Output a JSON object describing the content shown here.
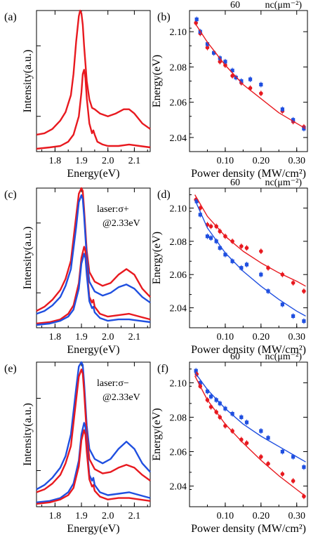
{
  "colors": {
    "red": "#e8191f",
    "blue": "#1f4fe0",
    "axis": "#000000"
  },
  "top_axis_labels": {
    "value": "60",
    "unit": "nc(μm⁻²)"
  },
  "chart_data": [
    {
      "panel": "(a)",
      "type": "line",
      "xlabel": "Energy(eV)",
      "ylabel": "Intensity(a.u.)",
      "xlim": [
        1.73,
        2.16
      ],
      "xticks": [
        "1.8",
        "1.9",
        "2.0",
        "2.1"
      ],
      "ylim": [
        0,
        1
      ],
      "series": [
        {
          "color": "red",
          "x": [
            1.73,
            1.76,
            1.79,
            1.82,
            1.84,
            1.86,
            1.87,
            1.88,
            1.89,
            1.895,
            1.9,
            1.905,
            1.91,
            1.92,
            1.93,
            1.94,
            1.95,
            1.97,
            2.0,
            2.03,
            2.06,
            2.08,
            2.1,
            2.13,
            2.16
          ],
          "y": [
            0.12,
            0.13,
            0.16,
            0.22,
            0.28,
            0.4,
            0.55,
            0.78,
            0.96,
            1.0,
            0.98,
            0.9,
            0.75,
            0.5,
            0.37,
            0.31,
            0.3,
            0.27,
            0.25,
            0.27,
            0.3,
            0.3,
            0.27,
            0.2,
            0.16
          ]
        },
        {
          "color": "red",
          "x": [
            1.73,
            1.78,
            1.82,
            1.85,
            1.87,
            1.89,
            1.9,
            1.905,
            1.91,
            1.915,
            1.92,
            1.93,
            1.94,
            1.945,
            1.95,
            1.96,
            1.98,
            2.0,
            2.04,
            2.08,
            2.12,
            2.16
          ],
          "y": [
            0.02,
            0.03,
            0.04,
            0.07,
            0.12,
            0.25,
            0.42,
            0.55,
            0.58,
            0.52,
            0.38,
            0.2,
            0.13,
            0.15,
            0.12,
            0.07,
            0.05,
            0.04,
            0.04,
            0.05,
            0.04,
            0.03
          ]
        }
      ]
    },
    {
      "panel": "(b)",
      "type": "scatter",
      "xlabel": "Power density (MW/cm²)",
      "ylabel": "Energy(eV)",
      "xlim": [
        0.0,
        0.33
      ],
      "xticks": [
        "0.10",
        "0.20",
        "0.30"
      ],
      "ylim": [
        2.032,
        2.112
      ],
      "yticks": [
        "2.04",
        "2.06",
        "2.08",
        "2.10"
      ],
      "series": [
        {
          "color": "red",
          "x": [
            0.018,
            0.03,
            0.05,
            0.068,
            0.085,
            0.1,
            0.12,
            0.145,
            0.17,
            0.2,
            0.26,
            0.29,
            0.32
          ],
          "y": [
            2.105,
            2.099,
            2.091,
            2.088,
            2.083,
            2.081,
            2.075,
            2.071,
            2.068,
            2.065,
            2.055,
            2.049,
            2.046
          ]
        },
        {
          "color": "blue",
          "x": [
            0.02,
            0.03,
            0.05,
            0.068,
            0.085,
            0.1,
            0.12,
            0.13,
            0.145,
            0.17,
            0.2,
            0.26,
            0.29,
            0.32
          ],
          "y": [
            2.107,
            2.1,
            2.093,
            2.088,
            2.085,
            2.083,
            2.078,
            2.074,
            2.072,
            2.073,
            2.07,
            2.056,
            2.05,
            2.045
          ]
        },
        {
          "color": "red",
          "fit": true,
          "x": [
            0.015,
            0.05,
            0.1,
            0.15,
            0.2,
            0.25,
            0.3,
            0.325
          ],
          "y": [
            2.105,
            2.094,
            2.081,
            2.07,
            2.062,
            2.054,
            2.048,
            2.045
          ]
        }
      ]
    },
    {
      "panel": "(c)",
      "type": "line",
      "xlabel": "Energy(eV)",
      "ylabel": "Intensity(a.u.)",
      "annotation": [
        "laser:σ+",
        "@2.33eV"
      ],
      "xlim": [
        1.73,
        2.16
      ],
      "xticks": [
        "1.8",
        "1.9",
        "2.0",
        "2.1"
      ],
      "ylim": [
        0,
        1
      ],
      "series": [
        {
          "color": "red",
          "x": [
            1.73,
            1.76,
            1.79,
            1.82,
            1.84,
            1.86,
            1.88,
            1.89,
            1.9,
            1.905,
            1.91,
            1.92,
            1.93,
            1.95,
            1.98,
            2.01,
            2.04,
            2.07,
            2.1,
            2.13,
            2.16
          ],
          "y": [
            0.12,
            0.15,
            0.2,
            0.27,
            0.35,
            0.48,
            0.8,
            0.96,
            1.0,
            0.98,
            0.85,
            0.55,
            0.4,
            0.33,
            0.3,
            0.32,
            0.38,
            0.42,
            0.38,
            0.28,
            0.22
          ]
        },
        {
          "color": "blue",
          "x": [
            1.73,
            1.76,
            1.79,
            1.82,
            1.84,
            1.86,
            1.88,
            1.89,
            1.9,
            1.905,
            1.91,
            1.92,
            1.93,
            1.95,
            1.98,
            2.01,
            2.04,
            2.07,
            2.1,
            2.13,
            2.16
          ],
          "y": [
            0.1,
            0.12,
            0.16,
            0.22,
            0.3,
            0.42,
            0.72,
            0.9,
            0.95,
            0.92,
            0.8,
            0.5,
            0.33,
            0.26,
            0.23,
            0.25,
            0.29,
            0.31,
            0.28,
            0.22,
            0.18
          ]
        },
        {
          "color": "red",
          "x": [
            1.73,
            1.78,
            1.82,
            1.85,
            1.87,
            1.89,
            1.9,
            1.91,
            1.915,
            1.92,
            1.93,
            1.94,
            1.945,
            1.95,
            1.97,
            2.0,
            2.04,
            2.08,
            2.12,
            2.16
          ],
          "y": [
            0.03,
            0.04,
            0.06,
            0.1,
            0.16,
            0.32,
            0.5,
            0.58,
            0.55,
            0.42,
            0.22,
            0.18,
            0.2,
            0.15,
            0.1,
            0.08,
            0.09,
            0.1,
            0.08,
            0.06
          ]
        },
        {
          "color": "blue",
          "x": [
            1.73,
            1.78,
            1.82,
            1.85,
            1.87,
            1.89,
            1.9,
            1.91,
            1.915,
            1.92,
            1.93,
            1.94,
            1.945,
            1.95,
            1.97,
            2.0,
            2.04,
            2.08,
            2.12,
            2.16
          ],
          "y": [
            0.02,
            0.03,
            0.05,
            0.08,
            0.13,
            0.28,
            0.46,
            0.53,
            0.5,
            0.38,
            0.19,
            0.14,
            0.15,
            0.11,
            0.07,
            0.05,
            0.06,
            0.06,
            0.05,
            0.04
          ]
        }
      ]
    },
    {
      "panel": "(d)",
      "type": "scatter",
      "xlabel": "Power density (MW/cm²)",
      "ylabel": "Energy(eV)",
      "xlim": [
        0.0,
        0.33
      ],
      "xticks": [
        "0.10",
        "0.20",
        "0.30"
      ],
      "ylim": [
        2.028,
        2.112
      ],
      "yticks": [
        "2.04",
        "2.06",
        "2.08",
        "2.10"
      ],
      "series": [
        {
          "color": "red",
          "x": [
            0.018,
            0.03,
            0.05,
            0.06,
            0.075,
            0.085,
            0.1,
            0.12,
            0.145,
            0.16,
            0.2,
            0.22,
            0.26,
            0.29,
            0.32
          ],
          "y": [
            2.105,
            2.1,
            2.09,
            2.089,
            2.089,
            2.086,
            2.083,
            2.08,
            2.077,
            2.076,
            2.074,
            2.064,
            2.06,
            2.055,
            2.05
          ]
        },
        {
          "color": "blue",
          "x": [
            0.02,
            0.03,
            0.05,
            0.06,
            0.075,
            0.085,
            0.1,
            0.12,
            0.145,
            0.16,
            0.2,
            0.22,
            0.26,
            0.29,
            0.32
          ],
          "y": [
            2.104,
            2.096,
            2.083,
            2.082,
            2.08,
            2.076,
            2.072,
            2.068,
            2.064,
            2.066,
            2.06,
            2.05,
            2.042,
            2.035,
            2.032
          ]
        },
        {
          "color": "red",
          "fit": true,
          "x": [
            0.015,
            0.05,
            0.1,
            0.15,
            0.2,
            0.25,
            0.3,
            0.325
          ],
          "y": [
            2.108,
            2.095,
            2.083,
            2.074,
            2.067,
            2.061,
            2.056,
            2.053
          ]
        },
        {
          "color": "blue",
          "fit": true,
          "x": [
            0.015,
            0.05,
            0.1,
            0.15,
            0.2,
            0.25,
            0.3,
            0.325
          ],
          "y": [
            2.105,
            2.088,
            2.073,
            2.062,
            2.053,
            2.045,
            2.038,
            2.035
          ]
        }
      ]
    },
    {
      "panel": "(e)",
      "type": "line",
      "xlabel": "Energy(eV)",
      "ylabel": "Intensity(a.u.)",
      "annotation": [
        "laser:σ−",
        "@2.33eV"
      ],
      "xlim": [
        1.73,
        2.16
      ],
      "xticks": [
        "1.8",
        "1.9",
        "2.0",
        "2.1"
      ],
      "ylim": [
        0,
        1
      ],
      "series": [
        {
          "color": "blue",
          "x": [
            1.73,
            1.76,
            1.79,
            1.82,
            1.84,
            1.86,
            1.88,
            1.89,
            1.9,
            1.905,
            1.91,
            1.92,
            1.93,
            1.95,
            1.98,
            2.01,
            2.04,
            2.07,
            2.1,
            2.13,
            2.16
          ],
          "y": [
            0.12,
            0.15,
            0.2,
            0.27,
            0.35,
            0.5,
            0.82,
            0.97,
            1.0,
            0.98,
            0.86,
            0.56,
            0.4,
            0.33,
            0.3,
            0.33,
            0.4,
            0.45,
            0.4,
            0.3,
            0.24
          ]
        },
        {
          "color": "red",
          "x": [
            1.73,
            1.76,
            1.79,
            1.82,
            1.84,
            1.86,
            1.88,
            1.89,
            1.9,
            1.905,
            1.91,
            1.92,
            1.93,
            1.95,
            1.98,
            2.01,
            2.04,
            2.07,
            2.1,
            2.13,
            2.16
          ],
          "y": [
            0.1,
            0.12,
            0.16,
            0.22,
            0.3,
            0.42,
            0.74,
            0.9,
            0.95,
            0.92,
            0.8,
            0.5,
            0.33,
            0.26,
            0.23,
            0.24,
            0.27,
            0.29,
            0.27,
            0.22,
            0.18
          ]
        },
        {
          "color": "blue",
          "x": [
            1.73,
            1.78,
            1.82,
            1.85,
            1.87,
            1.89,
            1.9,
            1.91,
            1.915,
            1.92,
            1.93,
            1.94,
            1.945,
            1.95,
            1.97,
            2.0,
            2.04,
            2.08,
            2.12,
            2.16
          ],
          "y": [
            0.03,
            0.04,
            0.06,
            0.1,
            0.16,
            0.32,
            0.5,
            0.58,
            0.55,
            0.42,
            0.22,
            0.18,
            0.2,
            0.15,
            0.1,
            0.08,
            0.09,
            0.1,
            0.08,
            0.06
          ]
        },
        {
          "color": "red",
          "x": [
            1.73,
            1.78,
            1.82,
            1.85,
            1.87,
            1.89,
            1.9,
            1.91,
            1.915,
            1.92,
            1.93,
            1.94,
            1.945,
            1.95,
            1.97,
            2.0,
            2.04,
            2.08,
            2.12,
            2.16
          ],
          "y": [
            0.02,
            0.03,
            0.05,
            0.08,
            0.13,
            0.28,
            0.46,
            0.53,
            0.5,
            0.38,
            0.19,
            0.14,
            0.15,
            0.11,
            0.07,
            0.05,
            0.06,
            0.06,
            0.05,
            0.04
          ]
        }
      ]
    },
    {
      "panel": "(f)",
      "type": "scatter",
      "xlabel": "Power density (MW/cm²)",
      "ylabel": "Energy(eV)",
      "xlim": [
        0.0,
        0.33
      ],
      "xticks": [
        "0.10",
        "0.20",
        "0.30"
      ],
      "ylim": [
        2.028,
        2.112
      ],
      "yticks": [
        "2.04",
        "2.06",
        "2.08",
        "2.10"
      ],
      "series": [
        {
          "color": "blue",
          "x": [
            0.018,
            0.03,
            0.05,
            0.06,
            0.075,
            0.085,
            0.1,
            0.12,
            0.145,
            0.16,
            0.2,
            0.22,
            0.26,
            0.29,
            0.32
          ],
          "y": [
            2.107,
            2.1,
            2.095,
            2.092,
            2.09,
            2.088,
            2.085,
            2.082,
            2.08,
            2.077,
            2.072,
            2.068,
            2.06,
            2.057,
            2.051
          ]
        },
        {
          "color": "red",
          "x": [
            0.02,
            0.03,
            0.05,
            0.06,
            0.075,
            0.085,
            0.1,
            0.12,
            0.145,
            0.16,
            0.2,
            0.22,
            0.26,
            0.29,
            0.32
          ],
          "y": [
            2.105,
            2.098,
            2.09,
            2.086,
            2.083,
            2.08,
            2.075,
            2.072,
            2.067,
            2.065,
            2.057,
            2.053,
            2.047,
            2.043,
            2.034
          ]
        },
        {
          "color": "blue",
          "fit": true,
          "x": [
            0.015,
            0.05,
            0.1,
            0.15,
            0.2,
            0.25,
            0.3,
            0.325
          ],
          "y": [
            2.106,
            2.096,
            2.085,
            2.076,
            2.069,
            2.063,
            2.057,
            2.054
          ]
        },
        {
          "color": "red",
          "fit": true,
          "x": [
            0.015,
            0.05,
            0.1,
            0.15,
            0.2,
            0.25,
            0.3,
            0.325
          ],
          "y": [
            2.104,
            2.09,
            2.076,
            2.065,
            2.055,
            2.046,
            2.038,
            2.034
          ]
        }
      ]
    }
  ]
}
